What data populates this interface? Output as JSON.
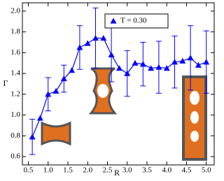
{
  "chart_data": {
    "type": "line",
    "x_label": "R",
    "y_label": "Γ",
    "series": [
      {
        "name": "T = 0.30",
        "color": "#0000ff",
        "x": [
          0.6,
          0.8,
          1.0,
          1.2,
          1.4,
          1.6,
          1.8,
          2.0,
          2.2,
          2.4,
          2.6,
          2.8,
          3.0,
          3.2,
          3.4,
          3.6,
          3.8,
          4.0,
          4.2,
          4.4,
          4.6,
          4.8,
          5.0
        ],
        "values": [
          0.79,
          0.97,
          1.2,
          1.23,
          1.35,
          1.43,
          1.65,
          1.69,
          1.74,
          1.74,
          1.58,
          1.45,
          1.4,
          1.5,
          1.49,
          1.45,
          1.46,
          1.45,
          1.51,
          1.52,
          1.55,
          1.48,
          1.51
        ],
        "errors": [
          0.17,
          null,
          0.16,
          null,
          0.13,
          null,
          0.21,
          null,
          0.29,
          null,
          0.26,
          null,
          0.22,
          null,
          0.21,
          null,
          0.25,
          null,
          0.25,
          null,
          0.31,
          null,
          0.3
        ]
      }
    ],
    "xlim": [
      0.35,
      5.2
    ],
    "ylim": [
      0.52,
      2.08
    ],
    "xticks": [
      0.5,
      {
        "value": 1,
        "label": "1.0"
      },
      1.5,
      {
        "value": 2,
        "label": "2.0"
      },
      2.5,
      {
        "value": 3,
        "label": "3.0"
      },
      3.5,
      {
        "value": 4,
        "label": "4.0"
      },
      4.5,
      {
        "value": 5,
        "label": "5.0"
      }
    ],
    "yticks": [
      0.6,
      0.8,
      {
        "value": 1,
        "label": "1.0"
      },
      1.2,
      1.4,
      1.6,
      1.8,
      {
        "value": 2,
        "label": "2.0"
      }
    ],
    "legend": "top-center"
  }
}
